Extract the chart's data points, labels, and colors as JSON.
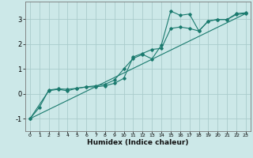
{
  "title": "",
  "xlabel": "Humidex (Indice chaleur)",
  "bg_color": "#cce8e8",
  "grid_color": "#aacccc",
  "line_color": "#1a7a6e",
  "xlim": [
    -0.5,
    23.5
  ],
  "ylim": [
    -1.5,
    3.7
  ],
  "yticks": [
    -1,
    0,
    1,
    2,
    3
  ],
  "xticks": [
    0,
    1,
    2,
    3,
    4,
    5,
    6,
    7,
    8,
    9,
    10,
    11,
    12,
    13,
    14,
    15,
    16,
    17,
    18,
    19,
    20,
    21,
    22,
    23
  ],
  "line1_x": [
    0,
    1,
    2,
    3,
    4,
    5,
    6,
    7,
    8,
    9,
    10,
    11,
    12,
    13,
    14,
    15,
    16,
    17,
    18,
    19,
    20,
    21,
    22,
    23
  ],
  "line1_y": [
    -1.0,
    -0.55,
    0.15,
    0.2,
    0.18,
    0.22,
    0.28,
    0.32,
    0.38,
    0.55,
    1.0,
    1.42,
    1.58,
    1.4,
    1.95,
    3.32,
    3.15,
    3.2,
    2.52,
    2.92,
    2.98,
    2.98,
    3.22,
    3.25
  ],
  "line2_x": [
    0,
    2,
    3,
    4,
    5,
    6,
    7,
    8,
    9,
    10,
    11,
    12,
    13,
    14,
    15,
    16,
    17,
    18,
    19,
    20,
    21,
    22,
    23
  ],
  "line2_y": [
    -1.0,
    0.12,
    0.18,
    0.12,
    0.22,
    0.27,
    0.28,
    0.32,
    0.42,
    0.62,
    1.48,
    1.62,
    1.78,
    1.82,
    2.62,
    2.68,
    2.62,
    2.52,
    2.92,
    2.98,
    2.98,
    3.18,
    3.22
  ],
  "line3_x": [
    0,
    23
  ],
  "line3_y": [
    -1.0,
    3.22
  ]
}
